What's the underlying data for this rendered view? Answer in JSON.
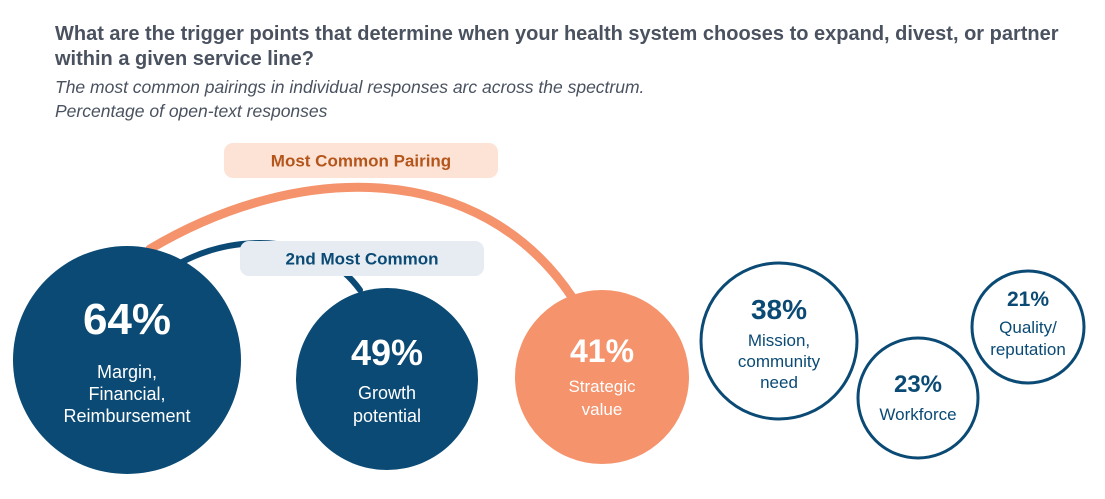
{
  "header": {
    "title": "What are the trigger points that determine when your health system chooses to expand, divest, or partner within a given service line?",
    "subtitle": "The most common pairings in individual responses arc across the spectrum.",
    "note": "Percentage of open-text responses"
  },
  "chart_data": {
    "type": "bubble",
    "unit": "%",
    "items": [
      {
        "value": 64,
        "label_lines": [
          "Margin,",
          "Financial,",
          "Reimbursement"
        ],
        "style": "dark"
      },
      {
        "value": 49,
        "label_lines": [
          "Growth",
          "potential"
        ],
        "style": "dark"
      },
      {
        "value": 41,
        "label_lines": [
          "Strategic",
          "value"
        ],
        "style": "accent"
      },
      {
        "value": 38,
        "label_lines": [
          "Mission,",
          "community",
          "need"
        ],
        "style": "outline"
      },
      {
        "value": 23,
        "label_lines": [
          "Workforce"
        ],
        "style": "outline"
      },
      {
        "value": 21,
        "label_lines": [
          "Quality/",
          "reputation"
        ],
        "style": "outline"
      }
    ],
    "pairings": [
      {
        "label": "Most Common Pairing",
        "from": 0,
        "to": 2,
        "color": "#f4936c"
      },
      {
        "label": "2nd Most Common",
        "from": 0,
        "to": 1,
        "color": "#0a4a74"
      }
    ]
  },
  "colors": {
    "dark": "#0a4a74",
    "accent": "#f4936c",
    "accent_text": "#b4561c",
    "pill_light": "#fde3d6",
    "pill_blue": "#e6ecf2",
    "text_gray": "#4a5260"
  }
}
